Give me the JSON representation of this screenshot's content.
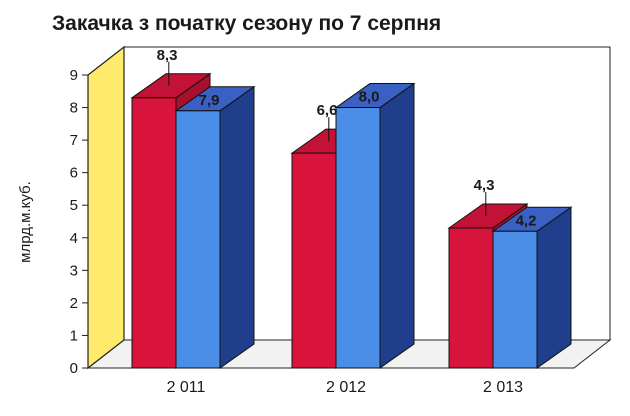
{
  "chart_data": {
    "type": "bar",
    "title": "Закачка з початку сезону по 7  серпня",
    "xlabel": "",
    "ylabel": "млрд.м.куб.",
    "categories": [
      "2 011",
      "2 012",
      "2 013"
    ],
    "series": [
      {
        "values": [
          8.3,
          6.6,
          4.3
        ],
        "labels": [
          "8,3",
          "6,6",
          "4,3"
        ],
        "color": "#d8143c"
      },
      {
        "values": [
          7.9,
          8.0,
          4.2
        ],
        "labels": [
          "7,9",
          "8,0",
          "4,2"
        ],
        "color": "#4a8ee8"
      }
    ],
    "ylim": [
      0,
      9
    ],
    "yticks": [
      "0",
      "1",
      "2",
      "3",
      "4",
      "5",
      "6",
      "7",
      "8",
      "9"
    ],
    "grid": false,
    "legend": "none",
    "style": "3d-bar",
    "colors": {
      "left_wall": "#ffeb6b",
      "floor": "#f2f2f2",
      "back_wall": "#ffffff",
      "series_side_dark": [
        "#a8102e",
        "#1f3f8c"
      ],
      "series_top": [
        "#c41236",
        "#3a60c4"
      ]
    }
  }
}
